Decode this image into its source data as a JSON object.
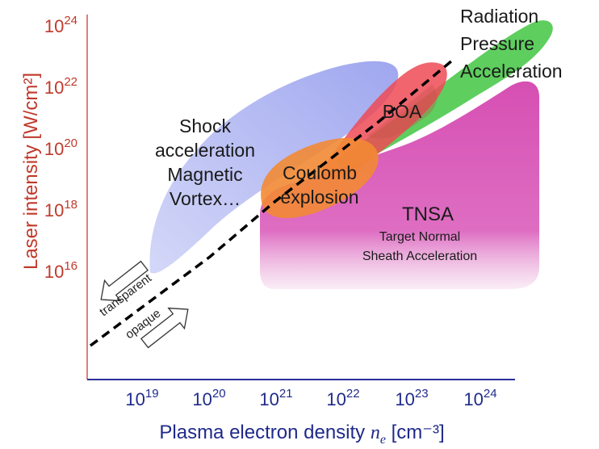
{
  "axes": {
    "y_title": "Laser intensity [W/cm²]",
    "x_title_main": "Plasma electron density ",
    "x_title_var": "n",
    "x_title_sub": "e",
    "x_title_unit": " [cm⁻³]",
    "y_ticks": [
      {
        "base": "10",
        "exp": "24"
      },
      {
        "base": "10",
        "exp": "22"
      },
      {
        "base": "10",
        "exp": "20"
      },
      {
        "base": "10",
        "exp": "18"
      },
      {
        "base": "10",
        "exp": "16"
      }
    ],
    "x_ticks": [
      {
        "base": "10",
        "exp": "19"
      },
      {
        "base": "10",
        "exp": "20"
      },
      {
        "base": "10",
        "exp": "21"
      },
      {
        "base": "10",
        "exp": "22"
      },
      {
        "base": "10",
        "exp": "23"
      },
      {
        "base": "10",
        "exp": "24"
      }
    ]
  },
  "regions": {
    "shock": {
      "lines": [
        "Shock",
        "acceleration",
        "Magnetic",
        "Vortex…"
      ],
      "color": "#a9b0f0"
    },
    "coulomb": {
      "lines": [
        "Coulomb",
        "explosion"
      ],
      "color": "#f28c38"
    },
    "boa": {
      "lines": [
        "BOA"
      ],
      "color": "#f0505a"
    },
    "rpa": {
      "lines": [
        "Radiation",
        "Pressure",
        "Acceleration"
      ],
      "color": "#46c94a"
    },
    "tnsa": {
      "lines": [
        "TNSA"
      ],
      "sub_lines": [
        "Target Normal",
        "Sheath Acceleration"
      ],
      "color": "#d84fb5"
    }
  },
  "boundary": {
    "upper_label": "transparent",
    "lower_label": "opaque"
  }
}
